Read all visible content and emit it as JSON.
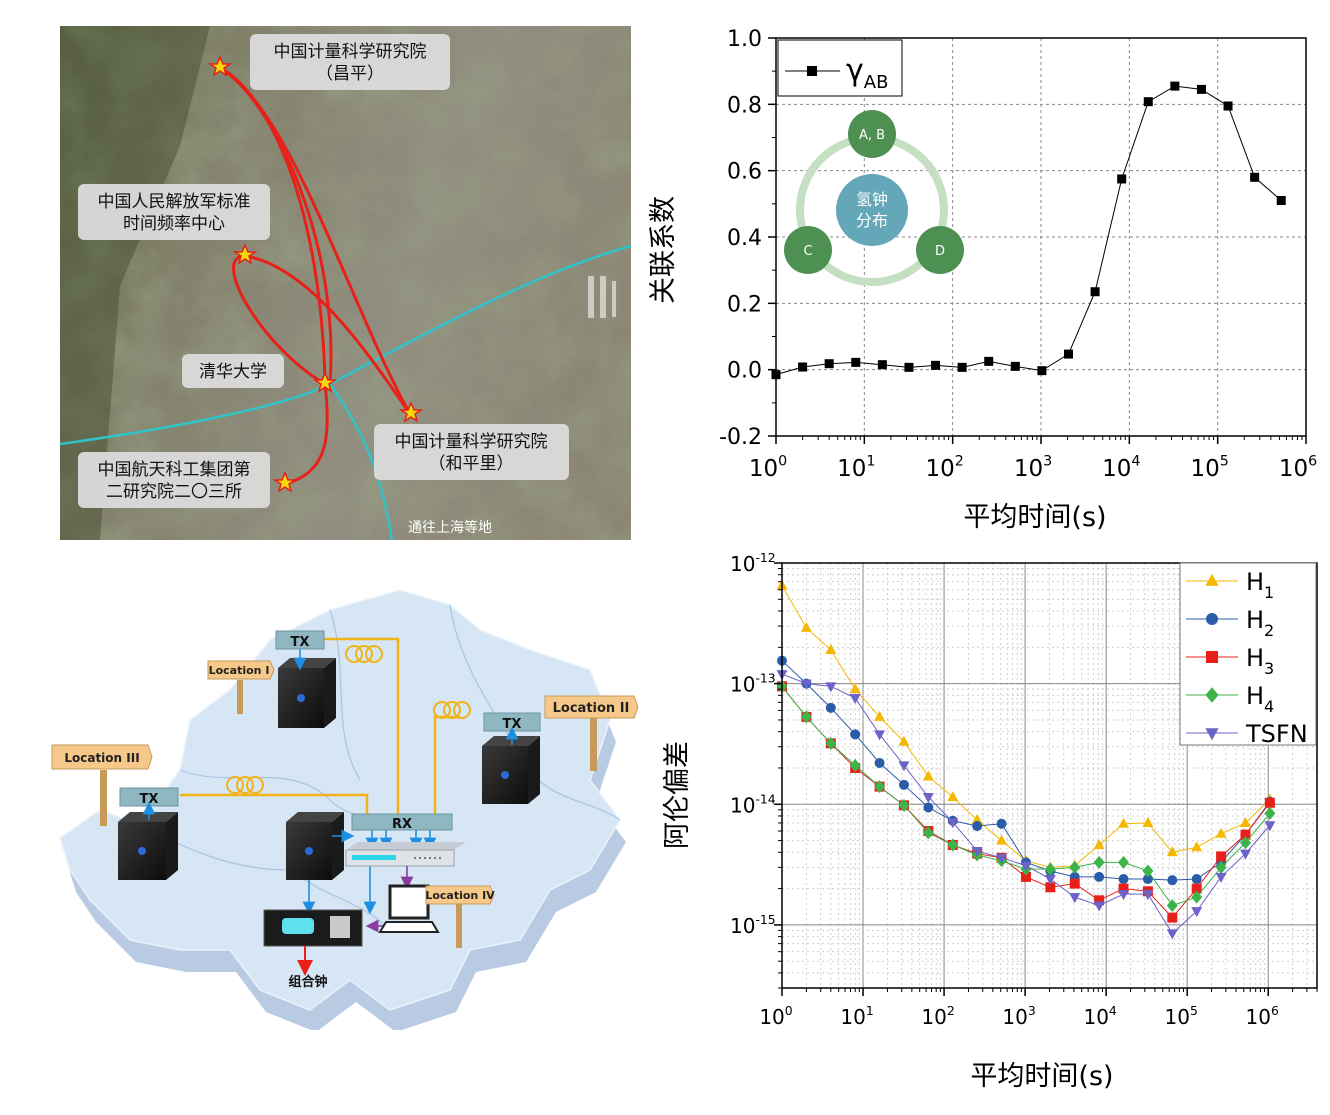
{
  "map": {
    "labels": {
      "nim_changping_1": "中国计量科学研究院",
      "nim_changping_2": "（昌平）",
      "pla_1": "中国人民解放军标准",
      "pla_2": "时间频率中心",
      "tsinghua": "清华大学",
      "nim_hepingli_1": "中国计量科学研究院",
      "nim_hepingli_2": "（和平里）",
      "casic_1": "中国航天科工集团第",
      "casic_2": "二研究院二〇三所",
      "shanghai": "通往上海等地"
    },
    "colors": {
      "fiber": "#e8201a",
      "backbone": "#2fc4c8",
      "star": "#f5d90a"
    }
  },
  "network": {
    "locations": [
      "Location I",
      "Location II",
      "Location III",
      "Location IV"
    ],
    "tx_label": "TX",
    "rx_label": "RX",
    "combined_clock": "组合钟"
  },
  "corr_chart": {
    "ylabel": "关联系数",
    "xlabel": "平均时间(s)",
    "legend": {
      "symbol": "γ",
      "sub": "AB"
    },
    "inset": {
      "center_1": "氢钟",
      "center_2": "分布",
      "node_ab": "A, B",
      "node_c": "C",
      "node_d": "D"
    },
    "yticks": [
      "1.0",
      "0.8",
      "0.6",
      "0.4",
      "0.2",
      "0.0",
      "-0.2"
    ],
    "xticks": [
      {
        "base": "10",
        "exp": "0"
      },
      {
        "base": "10",
        "exp": "1"
      },
      {
        "base": "10",
        "exp": "2"
      },
      {
        "base": "10",
        "exp": "3"
      },
      {
        "base": "10",
        "exp": "4"
      },
      {
        "base": "10",
        "exp": "5"
      },
      {
        "base": "10",
        "exp": "6"
      }
    ]
  },
  "adev_chart": {
    "ylabel": "阿伦偏差",
    "xlabel": "平均时间(s)",
    "yticks": [
      {
        "base": "10",
        "exp": "-12"
      },
      {
        "base": "10",
        "exp": "-13"
      },
      {
        "base": "10",
        "exp": "-14"
      },
      {
        "base": "10",
        "exp": "-15"
      }
    ],
    "xticks": [
      {
        "base": "10",
        "exp": "0"
      },
      {
        "base": "10",
        "exp": "1"
      },
      {
        "base": "10",
        "exp": "2"
      },
      {
        "base": "10",
        "exp": "3"
      },
      {
        "base": "10",
        "exp": "4"
      },
      {
        "base": "10",
        "exp": "5"
      },
      {
        "base": "10",
        "exp": "6"
      }
    ],
    "legend": [
      {
        "base": "H",
        "sub": "1",
        "color": "#f5b800",
        "marker": "triangle-up"
      },
      {
        "base": "H",
        "sub": "2",
        "color": "#2a5caa",
        "marker": "circle"
      },
      {
        "base": "H",
        "sub": "3",
        "color": "#e8201a",
        "marker": "square"
      },
      {
        "base": "H",
        "sub": "4",
        "color": "#3db34a",
        "marker": "diamond"
      },
      {
        "base": "TSFN",
        "sub": "",
        "color": "#6b63c8",
        "marker": "triangle-down"
      }
    ]
  },
  "chart_data": [
    {
      "type": "line",
      "x_scale": "log",
      "xlim": [
        1,
        1000000
      ],
      "ylim": [
        -0.2,
        1.0
      ],
      "grid": true,
      "legend_position": "top-left",
      "series": [
        {
          "name": "γAB",
          "x": [
            1,
            2,
            4,
            8,
            16,
            32,
            64,
            128,
            256,
            512,
            1024,
            2048,
            4096,
            8192,
            16384,
            32768,
            65536,
            131072,
            262144,
            524288
          ],
          "y": [
            -0.015,
            0.008,
            0.018,
            0.022,
            0.015,
            0.007,
            0.013,
            0.007,
            0.025,
            0.01,
            -0.003,
            0.047,
            0.235,
            0.575,
            0.808,
            0.855,
            0.845,
            0.795,
            0.58,
            0.51
          ]
        }
      ]
    },
    {
      "type": "line",
      "x_scale": "log",
      "y_scale": "log",
      "xlim": [
        1,
        4000000
      ],
      "ylim": [
        3e-16,
        1e-12
      ],
      "grid": true,
      "legend_position": "top-right",
      "series": [
        {
          "name": "H1",
          "x": [
            1,
            2,
            4,
            8,
            16,
            32,
            64,
            128,
            256,
            512,
            1024,
            2048,
            4096,
            8192,
            16384,
            32768,
            65536,
            131072,
            262144,
            524288,
            1048576
          ],
          "y": [
            6.5e-13,
            2.9e-13,
            1.9e-13,
            9e-14,
            5.3e-14,
            3.3e-14,
            1.7e-14,
            1.15e-14,
            7.4e-15,
            5e-15,
            3.4e-15,
            3e-15,
            3.1e-15,
            4.6e-15,
            6.9e-15,
            7e-15,
            4e-15,
            4.4e-15,
            5.7e-15,
            7e-15,
            1.1e-14
          ]
        },
        {
          "name": "H2",
          "x": [
            1,
            2,
            4,
            8,
            16,
            32,
            64,
            128,
            256,
            512,
            1024,
            2048,
            4096,
            8192,
            16384,
            32768,
            65536,
            131072,
            262144,
            524288,
            1048576
          ],
          "y": [
            1.55e-13,
            1e-13,
            6.3e-14,
            3.8e-14,
            2.2e-14,
            1.45e-14,
            9.4e-15,
            7.3e-15,
            6.6e-15,
            6.9e-15,
            3.3e-15,
            2.8e-15,
            2.5e-15,
            2.5e-15,
            2.4e-15,
            2.4e-15,
            2.35e-15,
            2.4e-15,
            3.3e-15,
            5.6e-15,
            1.05e-14
          ]
        },
        {
          "name": "H3",
          "x": [
            1,
            2,
            4,
            8,
            16,
            32,
            64,
            128,
            256,
            512,
            1024,
            2048,
            4096,
            8192,
            16384,
            32768,
            65536,
            131072,
            262144,
            524288,
            1048576
          ],
          "y": [
            9.5e-14,
            5.3e-14,
            3.2e-14,
            2e-14,
            1.4e-14,
            9.8e-15,
            6e-15,
            4.6e-15,
            3.9e-15,
            3.6e-15,
            2.5e-15,
            2.05e-15,
            2.2e-15,
            1.6e-15,
            2e-15,
            1.9e-15,
            1.15e-15,
            2e-15,
            3.7e-15,
            5.6e-15,
            1.03e-14
          ]
        },
        {
          "name": "H4",
          "x": [
            1,
            2,
            4,
            8,
            16,
            32,
            64,
            128,
            256,
            512,
            1024,
            2048,
            4096,
            8192,
            16384,
            32768,
            65536,
            131072,
            262144,
            524288,
            1048576
          ],
          "y": [
            9.5e-14,
            5.3e-14,
            3.2e-14,
            2.1e-14,
            1.4e-14,
            9.8e-15,
            5.8e-15,
            4.6e-15,
            3.8e-15,
            3.4e-15,
            2.9e-15,
            2.9e-15,
            3e-15,
            3.3e-15,
            3.3e-15,
            2.8e-15,
            1.45e-15,
            1.7e-15,
            3e-15,
            4.8e-15,
            8.4e-15
          ]
        },
        {
          "name": "TSFN",
          "x": [
            1,
            2,
            4,
            8,
            16,
            32,
            64,
            128,
            256,
            512,
            1024,
            2048,
            4096,
            8192,
            16384,
            32768,
            65536,
            131072,
            262144,
            524288,
            1048576
          ],
          "y": [
            1.2e-13,
            1e-13,
            9.5e-14,
            7.6e-14,
            3.8e-14,
            2.1e-14,
            1.15e-14,
            7.1e-15,
            4.1e-15,
            3.6e-15,
            3.1e-15,
            2.4e-15,
            1.7e-15,
            1.45e-15,
            1.8e-15,
            1.8e-15,
            8.5e-16,
            1.3e-15,
            2.5e-15,
            3.9e-15,
            6.7e-15
          ]
        }
      ]
    }
  ]
}
